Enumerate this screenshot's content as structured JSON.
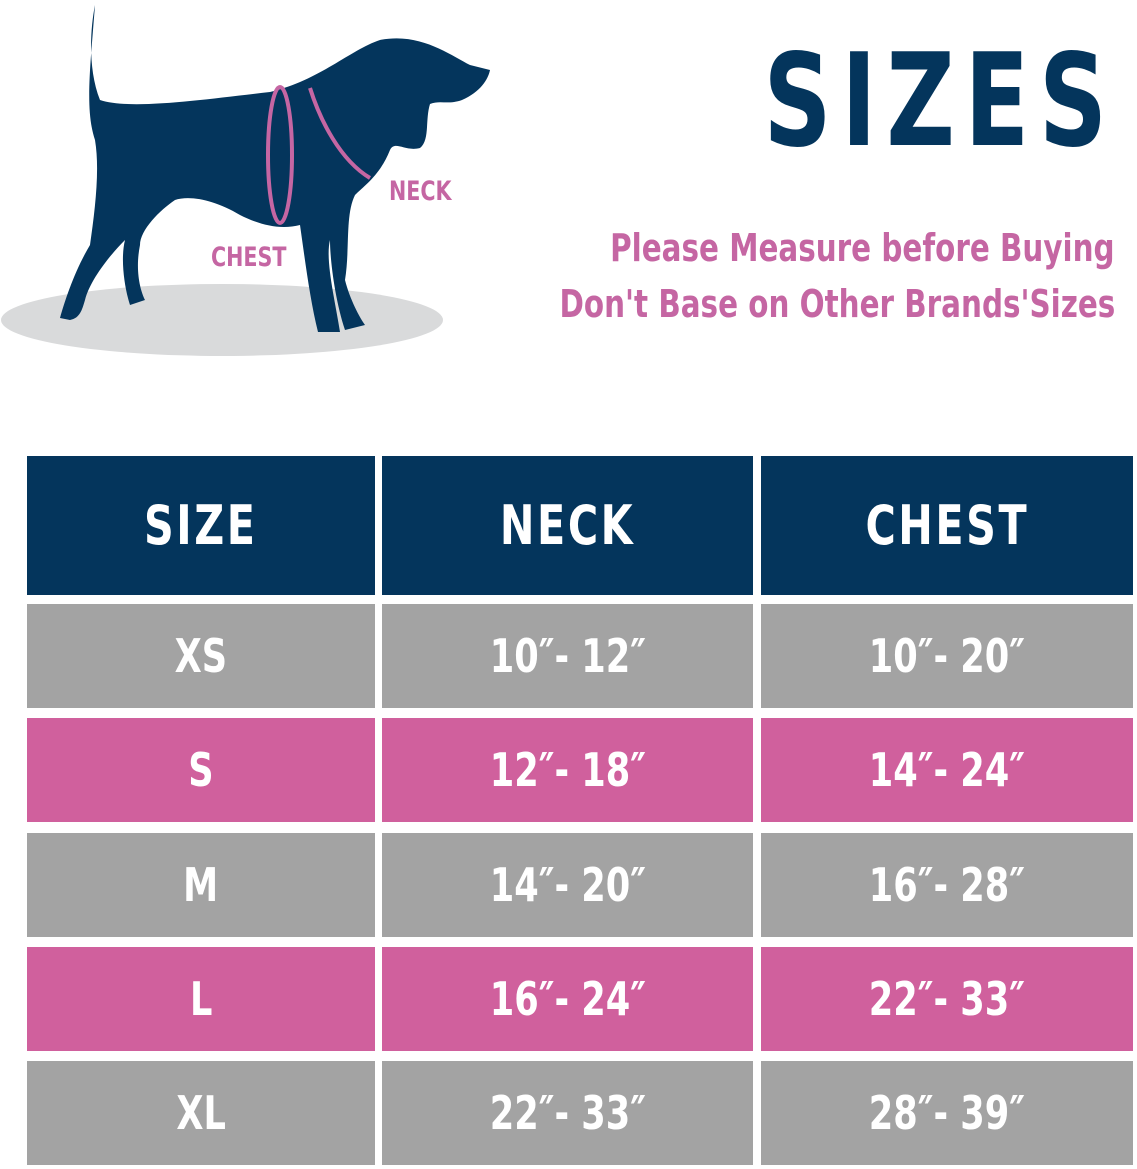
{
  "illustration": {
    "neck_label": "NECK",
    "chest_label": "CHEST",
    "icon": "dog-silhouette-icon"
  },
  "title": "SIZES",
  "subtitle_lines": [
    "Please Measure before Buying",
    "Don't Base on Other Brands'Sizes"
  ],
  "colors": {
    "navy": "#04355c",
    "grey": "#a3a3a3",
    "pink": "#d0609d",
    "text_pink": "#c566a3"
  },
  "table": {
    "headers": [
      "SIZE",
      "NECK",
      "CHEST"
    ],
    "rows": [
      {
        "size": "XS",
        "neck": "10″- 12″",
        "chest": "10″- 20″"
      },
      {
        "size": "S",
        "neck": "12″- 18″",
        "chest": "14″- 24″"
      },
      {
        "size": "M",
        "neck": "14″- 20″",
        "chest": "16″- 28″"
      },
      {
        "size": "L",
        "neck": "16″- 24″",
        "chest": "22″- 33″"
      },
      {
        "size": "XL",
        "neck": "22″- 33″",
        "chest": "28″- 39″"
      }
    ]
  }
}
